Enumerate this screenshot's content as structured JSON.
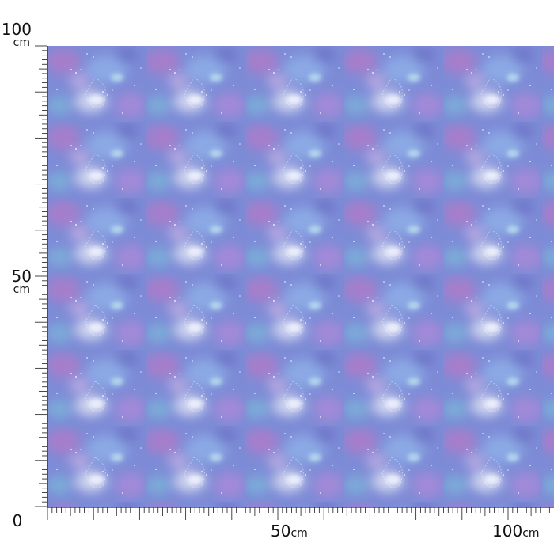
{
  "vertical_ruler": {
    "labels": [
      {
        "number": "100",
        "unit": "cm"
      },
      {
        "number": "50",
        "unit": "cm"
      },
      {
        "number": "0"
      }
    ]
  },
  "horizontal_ruler": {
    "labels": [
      {
        "number": "50",
        "unit": "cm"
      },
      {
        "number": "100",
        "unit": "cm"
      }
    ]
  }
}
